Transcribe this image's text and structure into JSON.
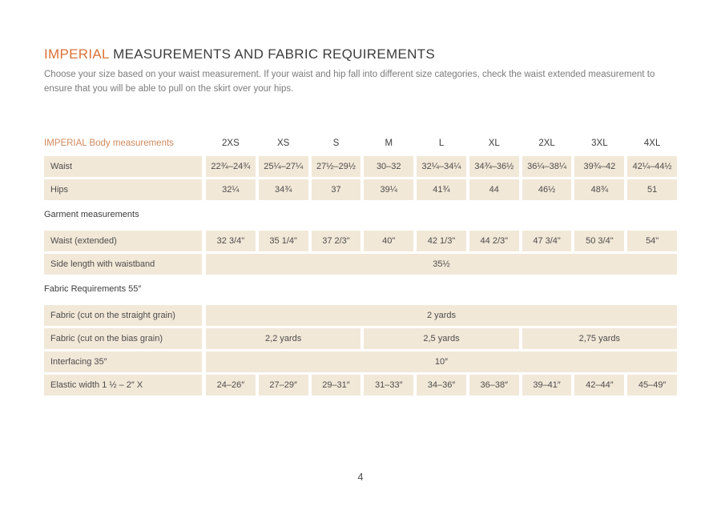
{
  "colors": {
    "accent": "#dc7136",
    "header_label": "#cf8a5e",
    "cell_bg": "#f2e8d8",
    "text_dark": "#3d3d3d",
    "text_gray": "#7b7b7b"
  },
  "page": {
    "title_highlight": "IMPERIAL",
    "title_rest": " MEASUREMENTS AND FABRIC REQUIREMENTS",
    "subtitle": "Choose your size based on your waist measurement. If your waist and hip fall into different size categories, check the waist extended measurement to ensure that you will be able to pull on the skirt over your hips.",
    "page_number": "4"
  },
  "table": {
    "header_label": "IMPERIAL Body measurements",
    "sizes": [
      "2XS",
      "XS",
      "S",
      "M",
      "L",
      "XL",
      "2XL",
      "3XL",
      "4XL"
    ],
    "rows": [
      {
        "type": "values",
        "label": "Waist",
        "values": [
          "22¾–24¾",
          "25¼–27¼",
          "27½–29½",
          "30–32",
          "32¼–34¼",
          "34¾–36½",
          "36¼–38¼",
          "39¾–42",
          "42¼–44½"
        ]
      },
      {
        "type": "values",
        "label": "Hips",
        "values": [
          "32¼",
          "34¾",
          "37",
          "39¼",
          "41¾",
          "44",
          "46½",
          "48¾",
          "51"
        ]
      },
      {
        "type": "section",
        "label": "Garment measurements"
      },
      {
        "type": "values",
        "label": "Waist (extended)",
        "values": [
          "32 3/4\"",
          "35 1/4\"",
          "37 2/3\"",
          "40\"",
          "42 1/3\"",
          "44 2/3\"",
          "47 3/4\"",
          "50 3/4\"",
          "54\""
        ]
      },
      {
        "type": "span",
        "label": "Side length with waistband",
        "value": "35½"
      },
      {
        "type": "section",
        "label": "Fabric Requirements 55″"
      },
      {
        "type": "span",
        "label": "Fabric (cut on the straight grain)",
        "value": "2 yards"
      },
      {
        "type": "span3",
        "label": "Fabric (cut on the bias grain)",
        "values": [
          "2,2 yards",
          "2,5 yards",
          "2,75 yards"
        ]
      },
      {
        "type": "span",
        "label": "Interfacing 35″",
        "value": "10″"
      },
      {
        "type": "values",
        "label": "Elastic width 1 ½ – 2″ X",
        "values": [
          "24–26″",
          "27–29″",
          "29–31″",
          "31–33″",
          "34–36″",
          "36–38″",
          "39–41″",
          "42–44″",
          "45–49″"
        ]
      }
    ]
  }
}
